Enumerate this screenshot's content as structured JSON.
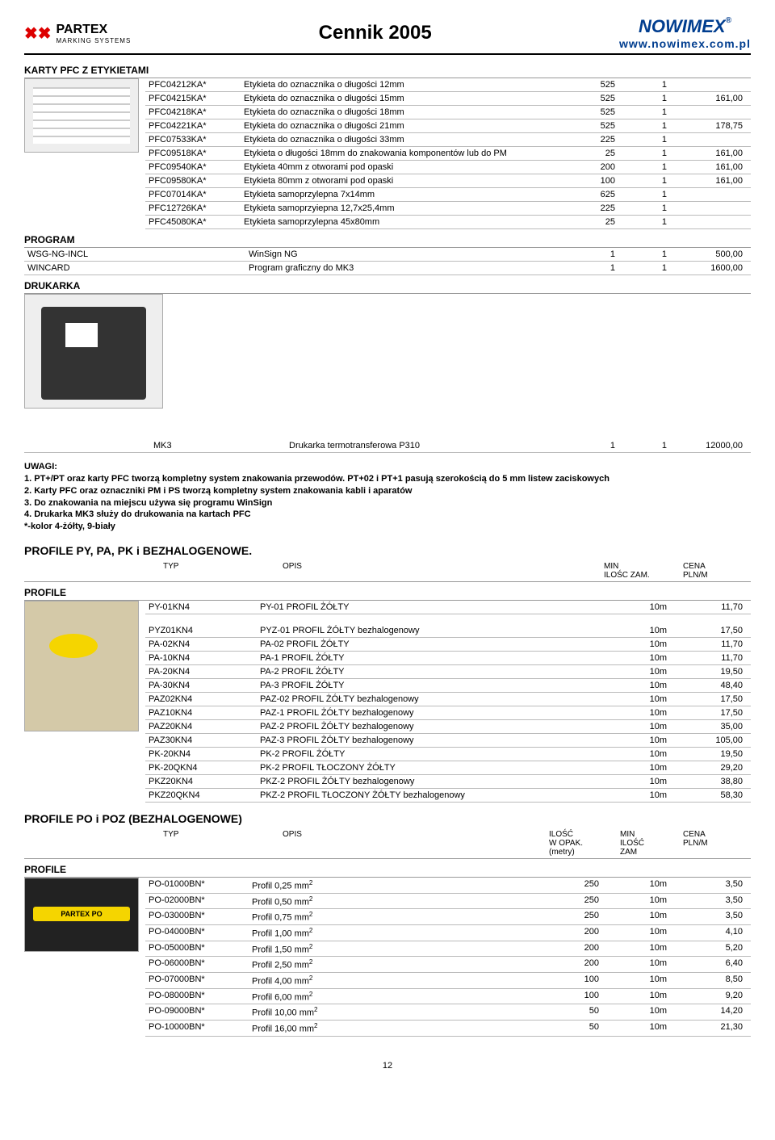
{
  "header": {
    "left_brand": "PARTEX",
    "left_sub": "MARKING SYSTEMS",
    "center": "Cennik 2005",
    "right_brand": "NOWIMEX",
    "right_tm": "®",
    "url": "www.nowimex.com.pl"
  },
  "section1_title": "KARTY PFC Z ETYKIETAMI",
  "pfc_rows": [
    {
      "code": "PFC04212KA*",
      "desc": "Etykieta do oznacznika o długości 12mm",
      "c1": "525",
      "c2": "1",
      "c3": ""
    },
    {
      "code": "PFC04215KA*",
      "desc": "Etykieta do oznacznika o długości 15mm",
      "c1": "525",
      "c2": "1",
      "c3": "161,00"
    },
    {
      "code": "PFC04218KA*",
      "desc": "Etykieta do oznacznika o długości 18mm",
      "c1": "525",
      "c2": "1",
      "c3": ""
    },
    {
      "code": "PFC04221KA*",
      "desc": "Etykieta do oznacznika o długości 21mm",
      "c1": "525",
      "c2": "1",
      "c3": "178,75"
    },
    {
      "code": "PFC07533KA*",
      "desc": "Etykieta do oznacznika o długości 33mm",
      "c1": "225",
      "c2": "1",
      "c3": ""
    },
    {
      "code": "PFC09518KA*",
      "desc": "Etykieta o długości 18mm do znakowania komponentów lub do PM",
      "c1": "25",
      "c2": "1",
      "c3": "161,00"
    },
    {
      "code": "PFC09540KA*",
      "desc": "Etykieta 40mm z otworami pod opaski",
      "c1": "200",
      "c2": "1",
      "c3": "161,00"
    },
    {
      "code": "PFC09580KA*",
      "desc": "Etykieta 80mm z otworami pod opaski",
      "c1": "100",
      "c2": "1",
      "c3": "161,00"
    },
    {
      "code": "PFC07014KA*",
      "desc": "Etykieta samoprzylepna 7x14mm",
      "c1": "625",
      "c2": "1",
      "c3": ""
    },
    {
      "code": "PFC12726KA*",
      "desc": "Etykieta samoprzyiepna 12,7x25,4mm",
      "c1": "225",
      "c2": "1",
      "c3": ""
    },
    {
      "code": "PFC45080KA*",
      "desc": "Etykieta samoprzylepna 45x80mm",
      "c1": "25",
      "c2": "1",
      "c3": ""
    }
  ],
  "program_title": "PROGRAM",
  "program_rows": [
    {
      "code": "WSG-NG-INCL",
      "desc": "WinSign NG",
      "c1": "1",
      "c2": "1",
      "c3": "500,00"
    },
    {
      "code": "WINCARD",
      "desc": "Program graficzny do MK3",
      "c1": "1",
      "c2": "1",
      "c3": "1600,00"
    }
  ],
  "drukarka_title": "DRUKARKA",
  "drukarka_row": {
    "code": "MK3",
    "desc": "Drukarka termotransferowa P310",
    "c1": "1",
    "c2": "1",
    "c3": "12000,00"
  },
  "notes_title": "UWAGI:",
  "notes": [
    "1. PT+/PT oraz karty PFC tworzą kompletny system znakowania przewodów. PT+02 i PT+1 pasują szerokością do 5 mm listew zaciskowych",
    "2. Karty PFC oraz oznaczniki PM i PS tworzą kompletny system znakowania kabli i aparatów",
    "3. Do znakowania na miejscu używa się programu WinSign",
    "4. Drukarka MK3 służy do drukowania na kartach PFC",
    "*-kolor 4-żółty, 9-biały"
  ],
  "profiles_title": "PROFILE PY, PA, PK i BEZHALOGENOWE.",
  "profile_head": {
    "typ": "TYP",
    "opis": "OPIS",
    "min": "MIN\nILOŚC ZAM.",
    "cena": "CENA\nPLN/M"
  },
  "profile_label": "PROFILE",
  "profile_rows1": [
    {
      "code": "PY-01KN4",
      "desc": "PY-01 PROFIL ŻÓŁTY",
      "min": "10m",
      "cena": "11,70"
    }
  ],
  "profile_rows2": [
    {
      "code": "PYZ01KN4",
      "desc": "PYZ-01 PROFIL ŻÓŁTY bezhalogenowy",
      "min": "10m",
      "cena": "17,50"
    },
    {
      "code": "PA-02KN4",
      "desc": "PA-02 PROFIL ŻÓŁTY",
      "min": "10m",
      "cena": "11,70"
    },
    {
      "code": "PA-10KN4",
      "desc": "PA-1 PROFIL ŻÓŁTY",
      "min": "10m",
      "cena": "11,70"
    },
    {
      "code": "PA-20KN4",
      "desc": "PA-2 PROFIL ŻÓŁTY",
      "min": "10m",
      "cena": "19,50"
    },
    {
      "code": "PA-30KN4",
      "desc": "PA-3 PROFIL ŻÓŁTY",
      "min": "10m",
      "cena": "48,40"
    },
    {
      "code": "PAZ02KN4",
      "desc": "PAZ-02 PROFIL ŻÓŁTY bezhalogenowy",
      "min": "10m",
      "cena": "17,50"
    },
    {
      "code": "PAZ10KN4",
      "desc": "PAZ-1 PROFIL ŻÓŁTY bezhalogenowy",
      "min": "10m",
      "cena": "17,50"
    },
    {
      "code": "PAZ20KN4",
      "desc": "PAZ-2 PROFIL ŻÓŁTY bezhalogenowy",
      "min": "10m",
      "cena": "35,00"
    },
    {
      "code": "PAZ30KN4",
      "desc": "PAZ-3 PROFIL ŻÓŁTY bezhalogenowy",
      "min": "10m",
      "cena": "105,00"
    },
    {
      "code": "PK-20KN4",
      "desc": "PK-2 PROFIL ŻÓŁTY",
      "min": "10m",
      "cena": "19,50"
    },
    {
      "code": "PK-20QKN4",
      "desc": "PK-2 PROFIL TŁOCZONY ŻÓŁTY",
      "min": "10m",
      "cena": "29,20"
    },
    {
      "code": "PKZ20KN4",
      "desc": "PKZ-2 PROFIL ŻÓŁTY bezhalogenowy",
      "min": "10m",
      "cena": "38,80"
    },
    {
      "code": "PKZ20QKN4",
      "desc": "PKZ-2 PROFIL TŁOCZONY ŻÓŁTY bezhalogenowy",
      "min": "10m",
      "cena": "58,30"
    }
  ],
  "profiles_poz_title": "PROFILE PO i POZ (BEZHALOGENOWE)",
  "poz_head": {
    "typ": "TYP",
    "opis": "OPIS",
    "ilosc": "ILOŚĆ\nW OPAK.\n(metry)",
    "min": "MIN\nILOŚĆ\nZAM",
    "cena": "CENA\nPLN/M"
  },
  "poz_rows": [
    {
      "code": "PO-01000BN*",
      "desc": "Profil 0,25 mm",
      "sup": "2",
      "c1": "250",
      "c2": "10m",
      "c3": "3,50"
    },
    {
      "code": "PO-02000BN*",
      "desc": "Profil 0,50 mm",
      "sup": "2",
      "c1": "250",
      "c2": "10m",
      "c3": "3,50"
    },
    {
      "code": "PO-03000BN*",
      "desc": "Profil 0,75 mm",
      "sup": "2",
      "c1": "250",
      "c2": "10m",
      "c3": "3,50"
    },
    {
      "code": "PO-04000BN*",
      "desc": "Profil 1,00 mm",
      "sup": "2",
      "c1": "200",
      "c2": "10m",
      "c3": "4,10"
    },
    {
      "code": "PO-05000BN*",
      "desc": "Profil 1,50 mm",
      "sup": "2",
      "c1": "200",
      "c2": "10m",
      "c3": "5,20"
    },
    {
      "code": "PO-06000BN*",
      "desc": "Profil 2,50 mm",
      "sup": "2",
      "c1": "200",
      "c2": "10m",
      "c3": "6,40"
    },
    {
      "code": "PO-07000BN*",
      "desc": "Profil 4,00 mm",
      "sup": "2",
      "c1": "100",
      "c2": "10m",
      "c3": "8,50"
    },
    {
      "code": "PO-08000BN*",
      "desc": "Profil 6,00 mm",
      "sup": "2",
      "c1": "100",
      "c2": "10m",
      "c3": "9,20"
    },
    {
      "code": "PO-09000BN*",
      "desc": "Profil 10,00 mm",
      "sup": "2",
      "c1": "50",
      "c2": "10m",
      "c3": "14,20"
    },
    {
      "code": "PO-10000BN*",
      "desc": "Profil 16,00 mm",
      "sup": "2",
      "c1": "50",
      "c2": "10m",
      "c3": "21,30"
    }
  ],
  "page_number": "12",
  "style": {
    "body_font_size": 11,
    "title_font_size": 24,
    "brand_color": "#003d8f",
    "accent_red": "#d00",
    "border_color": "#bbb",
    "thumb_bg": "#eee",
    "yellow": "#f5d500"
  }
}
